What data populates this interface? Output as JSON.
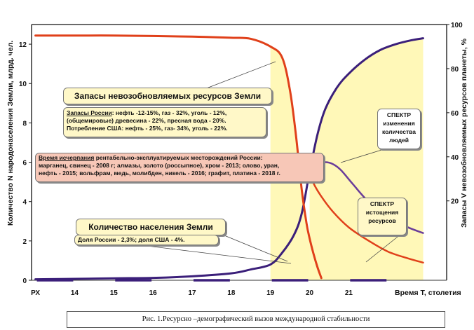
{
  "chart_data": {
    "type": "line",
    "xlabel": "Время Т, столетия",
    "ylabel_left": "Количество N народонаселения Земли, млрд. чел.",
    "ylabel_right": "Запасы V  невозобновляемых ресурсов планеты, %",
    "x_tick_labels": [
      "РХ",
      "14",
      "15",
      "16",
      "17",
      "18",
      "19",
      "20",
      "21"
    ],
    "x_ticks": [
      13,
      14,
      15,
      16,
      17,
      18,
      19,
      20,
      21
    ],
    "xlim": [
      12.9,
      23.5
    ],
    "y_left_ticks": [
      0,
      2,
      4,
      6,
      8,
      10,
      12
    ],
    "y_left_lim": [
      0,
      13
    ],
    "y_right_ticks": [
      20,
      40,
      60,
      80,
      100
    ],
    "y_right_lim": [
      -16,
      100
    ],
    "grid": false,
    "series": [
      {
        "name": "Количество населения Земли",
        "axis": "left",
        "color": "#3b1f7a",
        "x": [
          13,
          14,
          15,
          16,
          17,
          18,
          18.5,
          19,
          19.3,
          19.6,
          19.8,
          20.0,
          20.2,
          20.4,
          20.7,
          21.0,
          21.4,
          21.8,
          22.2,
          22.6,
          22.9
        ],
        "y": [
          0.05,
          0.07,
          0.1,
          0.12,
          0.2,
          0.35,
          0.55,
          0.8,
          1.4,
          2.3,
          3.4,
          5.5,
          7.4,
          8.7,
          9.8,
          10.5,
          11.2,
          11.7,
          12.0,
          12.2,
          12.3
        ]
      },
      {
        "name": "Запасы невозобновляемых ресурсов Земли",
        "axis": "right",
        "color": "#e0401a",
        "x": [
          13,
          14,
          15,
          16,
          17,
          18,
          18.5,
          19.0,
          19.3,
          19.5,
          19.65,
          19.8,
          19.92,
          20.0,
          20.1,
          20.2,
          20.3
        ],
        "y": [
          95,
          95,
          95,
          94.8,
          94.5,
          94,
          93.5,
          90,
          85,
          70,
          50,
          25,
          10,
          3,
          -4,
          -10,
          -15
        ]
      },
      {
        "name": "СПЕКТР изменения количества людей",
        "axis": "left",
        "color": "#6a3d9a",
        "x": [
          20.0,
          20.2,
          20.4,
          20.6,
          20.8,
          21.1,
          21.5,
          22.0,
          22.5,
          22.9
        ],
        "y": [
          5.6,
          5.9,
          6.0,
          5.9,
          5.6,
          4.9,
          4.0,
          3.2,
          2.7,
          2.4
        ]
      },
      {
        "name": "СПЕКТР истощения ресурсов",
        "axis": "right",
        "color": "#e0401a",
        "x": [
          19.9,
          20.0,
          20.1,
          20.3,
          20.6,
          21.0,
          21.5,
          22.0,
          22.5,
          22.9
        ],
        "y": [
          38,
          33,
          28,
          22,
          15,
          8,
          2,
          -3,
          -6,
          -8
        ]
      }
    ],
    "shaded_regions": [
      {
        "x_from": 19.0,
        "x_to": 20.0,
        "color": "#fff8b8",
        "follows": "Запасы невозобновляемых ресурсов Земли"
      },
      {
        "x_from": 20.0,
        "x_to": 22.9,
        "color": "#fff8b8",
        "follows": "Количество населения Земли"
      }
    ],
    "annotations": {
      "resources_title": "Запасы невозобновляемых ресурсов Земли",
      "russia_reserves_label": "Запасы России",
      "russia_reserves_text": ":  нефть -12-15%, газ - 32%, уголь - 12%,",
      "russia_reserves_line2": "(общемировые)   древесина - 22%, пресная вода - 20%.",
      "usa_consumption": "Потребление США:  нефть - 25%, газ- 34%, уголь - 22%.",
      "depletion_label": "Время исчерпания",
      "depletion_line1": "  рентабельно-эксплуатируемых месторождений России:",
      "depletion_line2": "марганец, свинец - 2008 г; алмазы, золото (россыпное), хром - 2013; олово, уран,",
      "depletion_line3": "нефть - 2015; вольфрам, медь, молибден, никель - 2016; графит, платина - 2018 г.",
      "population_title": "Количество населения Земли",
      "population_share": "Доля России - 2,3%; доля США - 4%.",
      "spectrum_people": "СПЕКТР изменения количества людей",
      "spectrum_resources": "СПЕКТР истощения ресурсов"
    }
  },
  "caption": "Рис. 1.Ресурсно –демографический вызов международной стабильности"
}
